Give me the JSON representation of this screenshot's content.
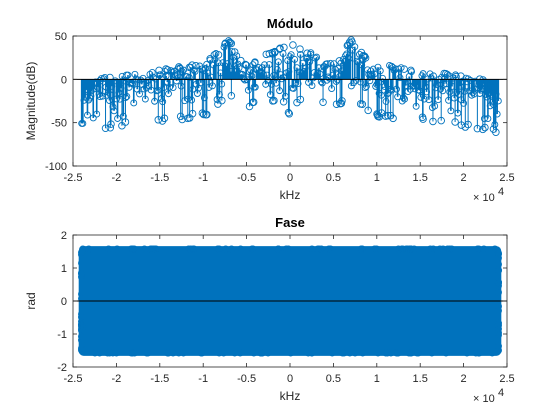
{
  "chart_data": [
    {
      "type": "stem",
      "title": "Módulo",
      "xlabel": "kHz",
      "ylabel": "Magnitude(dB)",
      "xlim": [
        -25000,
        25000
      ],
      "ylim": [
        -100,
        50
      ],
      "x_ticks": [
        -2.5,
        -2,
        -1.5,
        -1,
        -0.5,
        0,
        0.5,
        1,
        1.5,
        2,
        2.5
      ],
      "x_tick_labels": [
        "-2.5",
        "-2",
        "-1.5",
        "-1",
        "-0.5",
        "0",
        "0.5",
        "1",
        "1.5",
        "2",
        "2.5"
      ],
      "x_multiplier_base": "× 10",
      "x_multiplier_exp": "4",
      "y_ticks": [
        -100,
        -50,
        0,
        50
      ],
      "y_tick_labels": [
        "-100",
        "-50",
        "0",
        "50"
      ],
      "baseline": 0,
      "grid": false,
      "series_color": "#0072BD",
      "envelope": {
        "x": [
          -24000,
          -23000,
          -22000,
          -20000,
          -18000,
          -16000,
          -14000,
          -12000,
          -10000,
          -9000,
          -8000,
          -7500,
          -7000,
          -6500,
          -6000,
          -5000,
          -4000,
          -3000,
          -2000,
          -1000,
          0,
          1000,
          2000,
          3000,
          4000,
          5000,
          6000,
          6500,
          7000,
          7500,
          8000,
          9000,
          10000,
          12000,
          14000,
          16000,
          18000,
          20000,
          22000,
          23000,
          24000
        ],
        "upper": [
          -12,
          -8,
          2,
          3,
          8,
          10,
          14,
          17,
          20,
          27,
          33,
          42,
          48,
          38,
          24,
          18,
          22,
          28,
          33,
          37,
          42,
          37,
          33,
          28,
          22,
          18,
          24,
          38,
          48,
          42,
          33,
          27,
          20,
          17,
          14,
          10,
          8,
          3,
          2,
          -8,
          -12
        ],
        "lower": [
          -55,
          -52,
          -50,
          -48,
          -45,
          -42,
          -40,
          -38,
          -35,
          -30,
          -22,
          -15,
          -10,
          -12,
          -20,
          -25,
          -22,
          -20,
          -18,
          -15,
          -35,
          -15,
          -18,
          -20,
          -22,
          -25,
          -20,
          -12,
          -10,
          -15,
          -22,
          -30,
          -35,
          -38,
          -40,
          -42,
          -45,
          -48,
          -50,
          -52,
          -55
        ]
      }
    },
    {
      "type": "stem",
      "title": "Fase",
      "xlabel": "kHz",
      "ylabel": "rad",
      "xlim": [
        -25000,
        25000
      ],
      "ylim": [
        -2,
        2
      ],
      "x_ticks": [
        -2.5,
        -2,
        -1.5,
        -1,
        -0.5,
        0,
        0.5,
        1,
        1.5,
        2,
        2.5
      ],
      "x_tick_labels": [
        "-2.5",
        "-2",
        "-1.5",
        "-1",
        "-0.5",
        "0",
        "0.5",
        "1",
        "1.5",
        "2",
        "2.5"
      ],
      "x_multiplier_base": "× 10",
      "x_multiplier_exp": "4",
      "y_ticks": [
        -2,
        -1,
        0,
        1,
        2
      ],
      "y_tick_labels": [
        "-2",
        "-1",
        "0",
        "1",
        "2"
      ],
      "baseline": 0,
      "grid": false,
      "series_color": "#0072BD",
      "data_range": {
        "x": [
          -24000,
          24000
        ],
        "y": [
          -1.5708,
          1.5708
        ]
      }
    }
  ]
}
